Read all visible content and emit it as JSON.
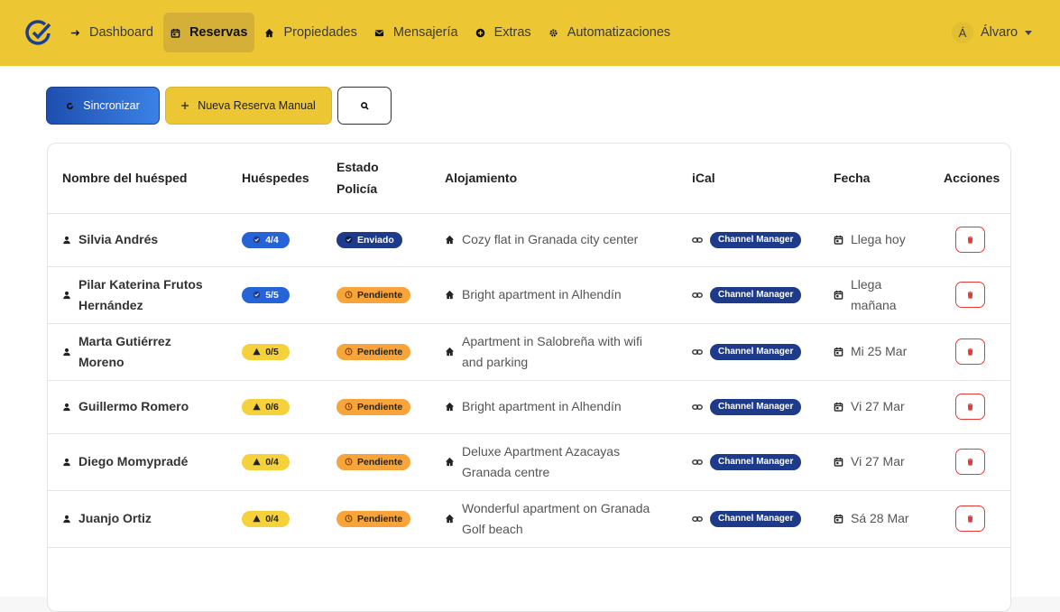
{
  "nav": {
    "items": [
      "Dashboard",
      "Reservas",
      "Propiedades",
      "Mensajería",
      "Extras",
      "Automatizaciones"
    ],
    "active": 1,
    "user_initial": "Á",
    "user": "Álvaro"
  },
  "toolbar": {
    "sync": "Sincronizar",
    "new": "Nueva Reserva Manual"
  },
  "table": {
    "headers": [
      "Nombre del huésped",
      "Huéspedes",
      "Estado Policía",
      "Alojamiento",
      "iCal",
      "Fecha",
      "Acciones"
    ],
    "rows": [
      {
        "guest": "Silvia Andrés",
        "guests": "4/4",
        "guests_color": "#2563d6",
        "police": "Enviado",
        "police_color": "#1e3a8a",
        "property": "Cozy flat in Granada city center",
        "ical": "Channel Manager",
        "date": "Llega hoy"
      },
      {
        "guest": "Pilar Katerina Frutos Hernández",
        "guests": "5/5",
        "guests_color": "#2563d6",
        "police": "Pendiente",
        "police_color": "#f7a53a",
        "property": "Bright apartment in Alhendín",
        "ical": "Channel Manager",
        "date": "Llega mañana"
      },
      {
        "guest": "Marta Gutiérrez Moreno",
        "guests": "0/5",
        "guests_color": "#f5d13b",
        "police": "Pendiente",
        "police_color": "#f7a53a",
        "property": "Apartment in Salobreña with wifi and parking",
        "ical": "Channel Manager",
        "date": "Mi 25 Mar"
      },
      {
        "guest": "Guillermo Romero",
        "guests": "0/6",
        "guests_color": "#f5d13b",
        "police": "Pendiente",
        "police_color": "#f7a53a",
        "property": "Bright apartment in Alhendín",
        "ical": "Channel Manager",
        "date": "Vi 27 Mar"
      },
      {
        "guest": "Diego Momypradé",
        "guests": "0/4",
        "guests_color": "#f5d13b",
        "police": "Pendiente",
        "police_color": "#f7a53a",
        "property": "Deluxe Apartment Azacayas Granada centre",
        "ical": "Channel Manager",
        "date": "Vi 27 Mar"
      },
      {
        "guest": "Juanjo Ortiz",
        "guests": "0/4",
        "guests_color": "#f5d13b",
        "police": "Pendiente",
        "police_color": "#f7a53a",
        "property": "Wonderful apartment on Granada Golf beach",
        "ical": "Channel Manager",
        "date": "Sá 28 Mar"
      }
    ]
  }
}
